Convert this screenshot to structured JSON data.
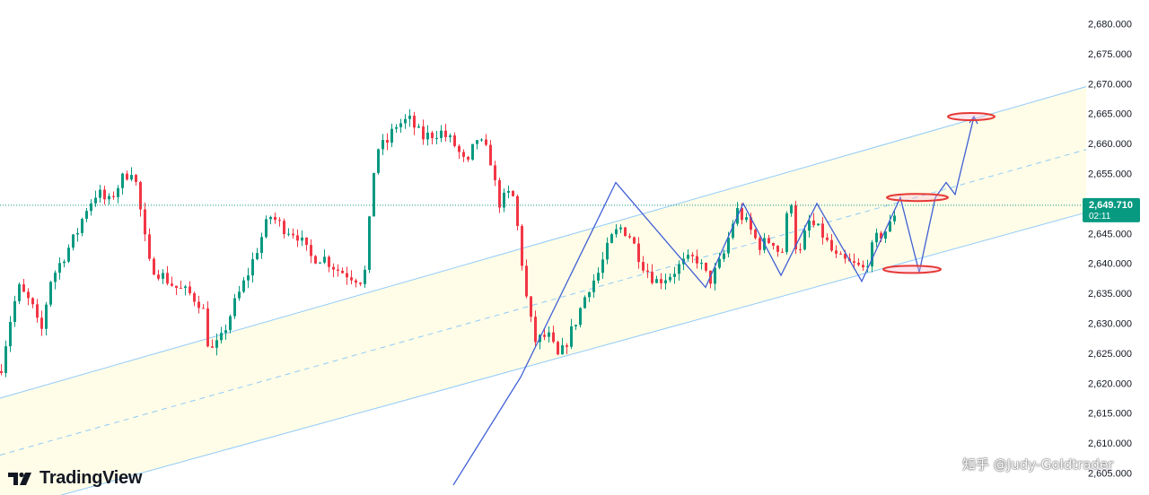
{
  "brand": {
    "name": "TradingView",
    "icon": "tradingview-logo-icon"
  },
  "watermark": {
    "text": "知乎 @Judy-Goldtrader"
  },
  "price_tag": {
    "price": "2,649.710",
    "countdown": "02:11",
    "color": "#089981"
  },
  "colors": {
    "up": "#089981",
    "down": "#f23645",
    "channel_fill": "#fffde7",
    "channel_line": "#90caf9",
    "projection": "#3f5fd6",
    "target_marker": "#e53935",
    "current_price_line": "#089981"
  },
  "chart_data": {
    "type": "candlestick",
    "y_axis": {
      "position": "right",
      "range": [
        2603,
        2683
      ],
      "tick_labels": [
        "2,680.000",
        "2,675.000",
        "2,670.000",
        "2,665.000",
        "2,660.000",
        "2,655.000",
        "2,650.000",
        "2,645.000",
        "2,640.000",
        "2,635.000",
        "2,630.000",
        "2,625.000",
        "2,620.000",
        "2,615.000",
        "2,610.000",
        "2,605.000"
      ],
      "tick_values": [
        2680,
        2675,
        2670,
        2665,
        2660,
        2655,
        2650,
        2645,
        2640,
        2635,
        2630,
        2625,
        2620,
        2615,
        2610,
        2605
      ]
    },
    "grid": false,
    "current_price": 2649.71,
    "price_path": [
      [
        0,
        2622
      ],
      [
        10,
        2630
      ],
      [
        20,
        2636
      ],
      [
        35,
        2633
      ],
      [
        45,
        2628
      ],
      [
        55,
        2637
      ],
      [
        70,
        2641
      ],
      [
        85,
        2645
      ],
      [
        95,
        2649
      ],
      [
        108,
        2652
      ],
      [
        120,
        2650
      ],
      [
        135,
        2654
      ],
      [
        148,
        2656
      ],
      [
        158,
        2647
      ],
      [
        165,
        2640
      ],
      [
        180,
        2638
      ],
      [
        195,
        2636
      ],
      [
        210,
        2635
      ],
      [
        225,
        2633
      ],
      [
        233,
        2625
      ],
      [
        245,
        2627
      ],
      [
        260,
        2633
      ],
      [
        275,
        2638
      ],
      [
        290,
        2644
      ],
      [
        300,
        2648
      ],
      [
        315,
        2646
      ],
      [
        330,
        2645
      ],
      [
        345,
        2641
      ],
      [
        360,
        2641
      ],
      [
        375,
        2639
      ],
      [
        390,
        2638
      ],
      [
        405,
        2637
      ],
      [
        410,
        2645
      ],
      [
        418,
        2659
      ],
      [
        430,
        2660
      ],
      [
        440,
        2663
      ],
      [
        455,
        2664
      ],
      [
        470,
        2661
      ],
      [
        490,
        2662
      ],
      [
        505,
        2660
      ],
      [
        520,
        2656
      ],
      [
        530,
        2661
      ],
      [
        545,
        2658
      ],
      [
        555,
        2650
      ],
      [
        570,
        2652
      ],
      [
        578,
        2644
      ],
      [
        585,
        2635
      ],
      [
        595,
        2627
      ],
      [
        610,
        2628
      ],
      [
        622,
        2624
      ],
      [
        640,
        2630
      ],
      [
        655,
        2636
      ],
      [
        665,
        2638
      ],
      [
        680,
        2644
      ],
      [
        690,
        2646
      ],
      [
        700,
        2645
      ],
      [
        715,
        2640
      ],
      [
        730,
        2637
      ],
      [
        745,
        2638
      ],
      [
        760,
        2640
      ],
      [
        775,
        2641
      ],
      [
        790,
        2637
      ],
      [
        805,
        2641
      ],
      [
        820,
        2649
      ],
      [
        830,
        2647
      ],
      [
        845,
        2643
      ],
      [
        860,
        2644
      ],
      [
        870,
        2641
      ],
      [
        880,
        2652
      ],
      [
        888,
        2640
      ],
      [
        900,
        2647
      ],
      [
        915,
        2645
      ],
      [
        930,
        2641
      ],
      [
        945,
        2640
      ],
      [
        962,
        2639
      ],
      [
        975,
        2644
      ],
      [
        990,
        2646
      ],
      [
        1000,
        2650
      ]
    ],
    "channel": {
      "upper": [
        [
          0,
          2617.5
        ],
        [
          1210,
          2669.5
        ]
      ],
      "middle": [
        [
          0,
          2608
        ],
        [
          1210,
          2659
        ]
      ],
      "lower": [
        [
          0,
          2598.5
        ],
        [
          1210,
          2648.5
        ]
      ]
    },
    "projection_path": [
      [
        505,
        2603
      ],
      [
        580,
        2621
      ],
      [
        686,
        2653.5
      ],
      [
        786,
        2636
      ],
      [
        828,
        2650
      ],
      [
        870,
        2638
      ],
      [
        910,
        2650
      ],
      [
        960,
        2637
      ],
      [
        1003,
        2651
      ],
      [
        1024,
        2638.5
      ],
      [
        1042,
        2651
      ],
      [
        1054,
        2653.5
      ],
      [
        1064,
        2651.5
      ],
      [
        1085,
        2664.5
      ]
    ],
    "target_zones": [
      {
        "x": [
          1056,
          1108
        ],
        "y": 2664.5
      },
      {
        "x": [
          988,
          1056
        ],
        "y": 2651
      },
      {
        "x": [
          984,
          1048
        ],
        "y": 2639
      }
    ]
  }
}
